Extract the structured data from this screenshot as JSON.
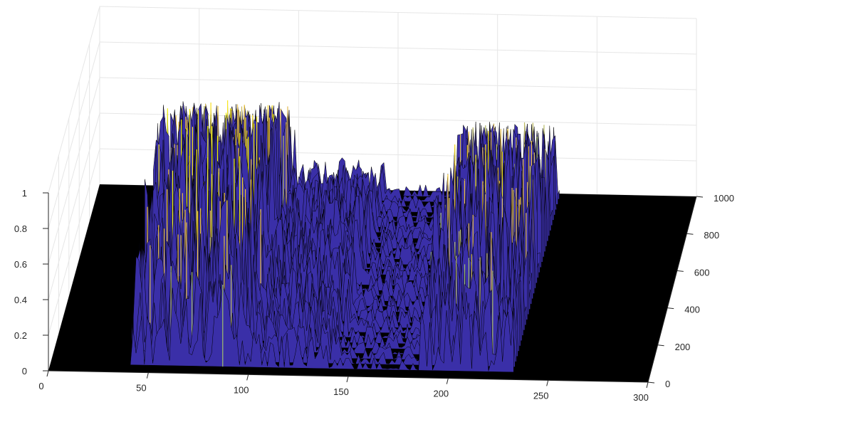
{
  "chart_data": {
    "type": "surface",
    "title": "",
    "xlabel": "",
    "ylabel": "",
    "zlabel": "",
    "xlim": [
      0,
      300
    ],
    "ylim": [
      0,
      1000
    ],
    "zlim": [
      0,
      1
    ],
    "x_ticks": [
      "0",
      "50",
      "100",
      "150",
      "200",
      "250",
      "300"
    ],
    "y_ticks": [
      "0",
      "200",
      "400",
      "600",
      "800",
      "1000"
    ],
    "z_ticks": [
      "0",
      "0.2",
      "0.4",
      "0.6",
      "0.8",
      "1"
    ],
    "grid": true,
    "colormap": "parula",
    "colors": {
      "floor": "#000000",
      "surface_base": "#3a2fa8",
      "edge": "#000000",
      "grid": "#e6e6e6",
      "axis": "#262626"
    },
    "x_support": [
      40,
      232
    ],
    "y_support": [
      40,
      970
    ],
    "peak_clusters": [
      {
        "x_range": [
          40,
          100
        ],
        "max_height": 0.88
      },
      {
        "x_range": [
          100,
          145
        ],
        "max_height": 0.38
      },
      {
        "x_range": [
          145,
          185
        ],
        "max_height": 0.12
      },
      {
        "x_range": [
          185,
          232
        ],
        "max_height": 0.78
      }
    ]
  }
}
